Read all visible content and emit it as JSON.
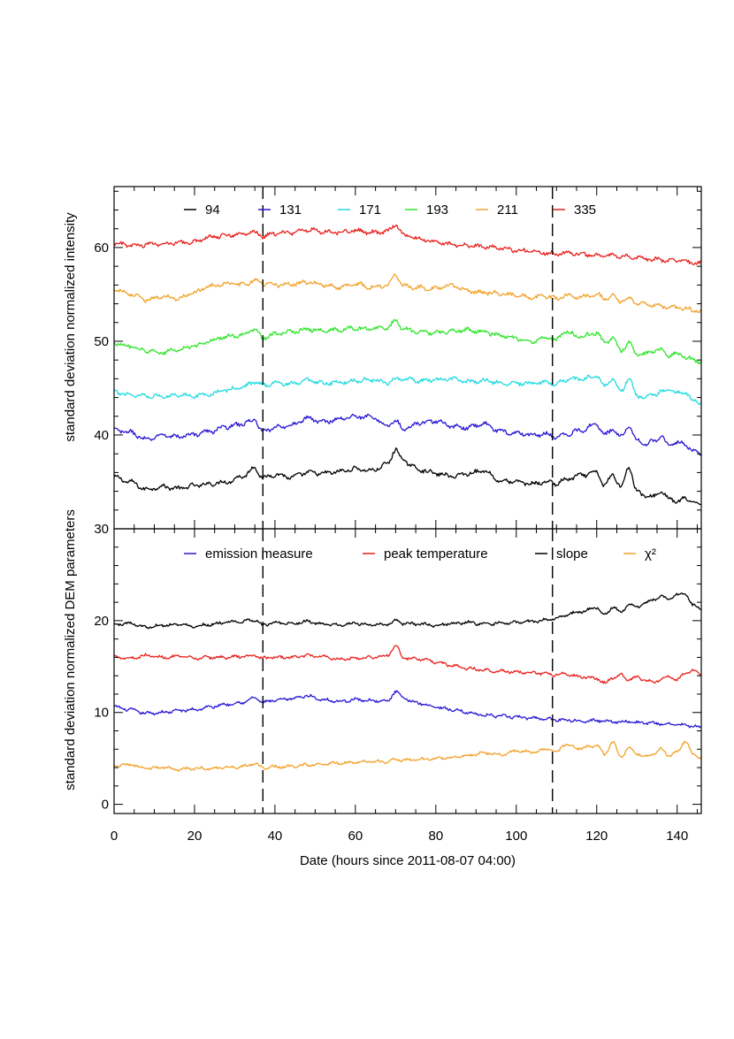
{
  "chart_data": [
    {
      "type": "line",
      "panel": "top",
      "ylabel": "standard deviation normalized intensity",
      "xlim": [
        0,
        146
      ],
      "ylim": [
        30,
        66.5
      ],
      "y_ticks": [
        40,
        50,
        60
      ],
      "vlines": [
        37,
        109
      ],
      "legend_position": "top",
      "series": [
        {
          "name": "94",
          "color": "#000000",
          "base": 35,
          "x": [
            0,
            4,
            8,
            12,
            16,
            20,
            24,
            28,
            32,
            35,
            37,
            40,
            44,
            48,
            52,
            56,
            60,
            64,
            68,
            70,
            72,
            76,
            80,
            84,
            88,
            92,
            96,
            100,
            104,
            108,
            110,
            112,
            116,
            120,
            122,
            124,
            126,
            128,
            130,
            132,
            134,
            136,
            138,
            140,
            142,
            144,
            146
          ],
          "values": [
            35.5,
            35.0,
            34.2,
            34.5,
            34.3,
            34.6,
            34.8,
            35.0,
            35.6,
            36.5,
            35.4,
            35.8,
            35.5,
            36.0,
            35.9,
            36.1,
            36.4,
            36.2,
            36.9,
            38.5,
            37.2,
            36.3,
            35.9,
            35.6,
            35.9,
            36.2,
            35.1,
            35.0,
            34.8,
            35.0,
            34.8,
            35.2,
            35.7,
            36.0,
            34.6,
            35.8,
            34.5,
            36.6,
            34.0,
            33.5,
            33.4,
            34.0,
            33.2,
            32.9,
            33.2,
            32.8,
            32.6
          ]
        },
        {
          "name": "131",
          "color": "#2a17d4",
          "base": 40,
          "x": [
            0,
            4,
            8,
            12,
            16,
            20,
            24,
            28,
            32,
            35,
            37,
            40,
            44,
            48,
            52,
            56,
            60,
            64,
            68,
            70,
            72,
            76,
            80,
            84,
            88,
            92,
            96,
            100,
            104,
            108,
            110,
            112,
            116,
            120,
            122,
            124,
            126,
            128,
            130,
            132,
            134,
            136,
            138,
            140,
            142,
            144,
            146
          ],
          "values": [
            40.5,
            40.3,
            39.5,
            40.0,
            39.8,
            40.1,
            40.4,
            40.9,
            41.2,
            41.6,
            40.3,
            40.8,
            41.0,
            41.8,
            41.4,
            41.7,
            42.0,
            41.9,
            41.0,
            41.5,
            40.6,
            41.3,
            41.5,
            40.9,
            40.8,
            41.2,
            40.4,
            40.2,
            40.0,
            40.1,
            39.8,
            40.0,
            40.5,
            41.2,
            40.0,
            40.6,
            39.8,
            41.0,
            39.5,
            39.0,
            39.3,
            39.8,
            38.9,
            39.2,
            39.0,
            38.3,
            38.0
          ]
        },
        {
          "name": "171",
          "color": "#22dbe0",
          "base": 45,
          "x": [
            0,
            4,
            8,
            12,
            16,
            20,
            24,
            28,
            32,
            35,
            37,
            40,
            44,
            48,
            52,
            56,
            60,
            64,
            68,
            70,
            72,
            76,
            80,
            84,
            88,
            92,
            96,
            100,
            104,
            108,
            110,
            112,
            116,
            120,
            122,
            124,
            126,
            128,
            130,
            132,
            134,
            136,
            138,
            140,
            142,
            144,
            146
          ],
          "values": [
            44.6,
            44.3,
            44.2,
            44.1,
            44.3,
            44.2,
            44.4,
            44.8,
            45.1,
            45.7,
            45.3,
            45.6,
            45.4,
            45.8,
            45.5,
            45.6,
            45.8,
            45.9,
            45.6,
            46.0,
            45.9,
            45.8,
            45.9,
            46.0,
            45.7,
            45.8,
            45.6,
            45.5,
            45.5,
            45.6,
            45.4,
            45.9,
            46.0,
            46.3,
            45.2,
            46.0,
            44.6,
            46.1,
            44.2,
            44.0,
            44.3,
            44.6,
            44.8,
            44.5,
            44.6,
            43.6,
            43.5
          ]
        },
        {
          "name": "193",
          "color": "#2ee62a",
          "base": 50,
          "x": [
            0,
            4,
            8,
            12,
            16,
            20,
            24,
            28,
            32,
            35,
            37,
            40,
            44,
            48,
            52,
            56,
            60,
            64,
            68,
            70,
            72,
            76,
            80,
            84,
            88,
            92,
            96,
            100,
            104,
            108,
            110,
            112,
            116,
            120,
            122,
            124,
            126,
            128,
            130,
            132,
            134,
            136,
            138,
            140,
            142,
            144,
            146
          ],
          "values": [
            49.8,
            49.4,
            49.0,
            48.8,
            49.1,
            49.5,
            50.1,
            50.5,
            50.7,
            51.3,
            50.3,
            50.8,
            51.0,
            51.3,
            51.1,
            51.2,
            51.4,
            51.3,
            51.4,
            52.2,
            51.3,
            51.0,
            50.9,
            51.1,
            51.2,
            51.0,
            50.6,
            50.3,
            50.0,
            50.4,
            50.1,
            51.0,
            50.5,
            50.9,
            49.8,
            50.3,
            49.0,
            49.8,
            48.7,
            48.6,
            48.9,
            49.1,
            48.5,
            48.7,
            48.3,
            48.0,
            47.8
          ]
        },
        {
          "name": "211",
          "color": "#f2a22a",
          "base": 55,
          "x": [
            0,
            4,
            8,
            12,
            16,
            20,
            24,
            28,
            32,
            35,
            37,
            40,
            44,
            48,
            52,
            56,
            60,
            64,
            68,
            70,
            72,
            76,
            80,
            84,
            88,
            92,
            96,
            100,
            104,
            108,
            110,
            112,
            116,
            120,
            122,
            124,
            126,
            128,
            130,
            132,
            134,
            136,
            138,
            140,
            142,
            144,
            146
          ],
          "values": [
            55.6,
            55.0,
            54.4,
            54.8,
            54.6,
            55.2,
            55.9,
            56.2,
            56.0,
            56.5,
            56.2,
            56.0,
            56.1,
            56.3,
            56.0,
            55.8,
            56.1,
            55.8,
            55.9,
            57.1,
            55.9,
            55.7,
            55.6,
            56.0,
            55.4,
            55.2,
            55.1,
            54.9,
            54.7,
            54.8,
            54.5,
            54.9,
            54.7,
            55.0,
            54.6,
            54.8,
            54.3,
            54.5,
            54.1,
            53.9,
            53.8,
            53.7,
            53.6,
            53.6,
            53.5,
            53.3,
            53.2
          ]
        },
        {
          "name": "335",
          "color": "#e8201c",
          "base": 60,
          "x": [
            0,
            4,
            8,
            12,
            16,
            20,
            24,
            28,
            32,
            35,
            37,
            40,
            44,
            48,
            52,
            56,
            60,
            64,
            68,
            70,
            72,
            76,
            80,
            84,
            88,
            92,
            96,
            100,
            104,
            108,
            110,
            112,
            116,
            120,
            122,
            124,
            126,
            128,
            130,
            132,
            134,
            136,
            138,
            140,
            142,
            144,
            146
          ],
          "values": [
            60.5,
            60.2,
            60.3,
            60.4,
            60.5,
            60.6,
            61.1,
            61.3,
            61.5,
            61.6,
            61.2,
            61.5,
            61.6,
            61.9,
            61.7,
            61.6,
            61.8,
            61.6,
            61.7,
            62.5,
            61.3,
            60.9,
            60.6,
            60.3,
            60.2,
            60.1,
            59.9,
            59.7,
            59.6,
            59.4,
            59.3,
            59.4,
            59.3,
            59.2,
            59.1,
            59.1,
            59.0,
            59.0,
            58.9,
            58.8,
            58.7,
            58.7,
            58.6,
            58.6,
            58.5,
            58.4,
            58.3
          ]
        }
      ]
    },
    {
      "type": "line",
      "panel": "bottom",
      "ylabel": "standard deviation normalized DEM parameters",
      "xlabel": "Date (hours since 2011-08-07 04:00)",
      "xlim": [
        0,
        146
      ],
      "ylim": [
        -1,
        30
      ],
      "x_ticks": [
        0,
        20,
        40,
        60,
        80,
        100,
        120,
        140
      ],
      "y_ticks": [
        0,
        10,
        20,
        30
      ],
      "vlines": [
        37,
        109
      ],
      "legend_position": "top",
      "series": [
        {
          "name": "emission measure",
          "color": "#2a17d4",
          "base": 10,
          "x": [
            0,
            4,
            8,
            12,
            16,
            20,
            24,
            28,
            32,
            35,
            37,
            40,
            44,
            48,
            52,
            56,
            60,
            64,
            68,
            70,
            72,
            76,
            80,
            84,
            88,
            92,
            96,
            100,
            104,
            108,
            110,
            112,
            116,
            120,
            122,
            124,
            126,
            128,
            130,
            132,
            134,
            136,
            138,
            140,
            142,
            144,
            146
          ],
          "values": [
            10.6,
            10.3,
            9.9,
            10.0,
            10.2,
            10.3,
            10.6,
            10.9,
            11.1,
            11.6,
            11.1,
            11.3,
            11.5,
            11.8,
            11.4,
            11.2,
            11.4,
            11.3,
            11.2,
            12.3,
            11.5,
            11.0,
            10.6,
            10.3,
            10.0,
            9.7,
            9.6,
            9.5,
            9.4,
            9.3,
            9.2,
            9.2,
            9.1,
            9.1,
            9.1,
            9.0,
            9.0,
            9.0,
            8.9,
            8.9,
            8.8,
            8.8,
            8.7,
            8.7,
            8.6,
            8.5,
            8.3
          ]
        },
        {
          "name": "peak temperature",
          "color": "#e8201c",
          "base": 15,
          "x": [
            0,
            4,
            8,
            12,
            16,
            20,
            24,
            28,
            32,
            35,
            37,
            40,
            44,
            48,
            52,
            56,
            60,
            64,
            68,
            70,
            72,
            76,
            80,
            84,
            88,
            92,
            96,
            100,
            104,
            108,
            110,
            112,
            116,
            120,
            122,
            124,
            126,
            128,
            130,
            132,
            134,
            136,
            138,
            140,
            142,
            144,
            146
          ],
          "values": [
            16.1,
            15.9,
            16.2,
            16.0,
            16.1,
            15.9,
            16.0,
            16.0,
            16.1,
            16.2,
            15.9,
            16.0,
            16.0,
            16.2,
            16.1,
            15.8,
            15.9,
            16.0,
            16.2,
            17.3,
            15.9,
            15.8,
            15.5,
            15.1,
            14.8,
            14.6,
            14.5,
            14.4,
            14.3,
            14.2,
            14.1,
            14.2,
            13.9,
            13.7,
            13.2,
            13.8,
            14.1,
            13.6,
            13.8,
            13.5,
            13.3,
            13.6,
            13.9,
            13.5,
            14.3,
            14.6,
            14.2
          ]
        },
        {
          "name": "slope",
          "color": "#000000",
          "base": 20,
          "x": [
            0,
            4,
            8,
            12,
            16,
            20,
            24,
            28,
            32,
            35,
            37,
            40,
            44,
            48,
            52,
            56,
            60,
            64,
            68,
            70,
            72,
            76,
            80,
            84,
            88,
            92,
            96,
            100,
            104,
            108,
            110,
            112,
            116,
            120,
            122,
            124,
            126,
            128,
            130,
            132,
            134,
            136,
            138,
            140,
            142,
            144,
            146
          ],
          "values": [
            19.6,
            19.7,
            19.3,
            19.5,
            19.6,
            19.4,
            19.6,
            19.8,
            19.9,
            20.1,
            19.5,
            19.8,
            19.7,
            19.9,
            19.6,
            19.5,
            19.7,
            19.5,
            19.6,
            20.0,
            19.7,
            19.6,
            19.5,
            19.7,
            19.8,
            19.6,
            19.7,
            19.8,
            19.9,
            20.1,
            20.2,
            20.6,
            21.0,
            21.4,
            20.6,
            21.5,
            20.9,
            21.8,
            21.5,
            21.9,
            22.3,
            22.6,
            22.4,
            22.8,
            23.0,
            21.6,
            21.4
          ]
        },
        {
          "name": "χ²",
          "color": "#f2a22a",
          "base": 5,
          "x": [
            0,
            4,
            8,
            12,
            16,
            20,
            24,
            28,
            32,
            35,
            37,
            40,
            44,
            48,
            52,
            56,
            60,
            64,
            68,
            70,
            72,
            76,
            80,
            84,
            88,
            92,
            96,
            100,
            104,
            108,
            110,
            112,
            116,
            120,
            122,
            124,
            126,
            128,
            130,
            132,
            134,
            136,
            138,
            140,
            142,
            144,
            146
          ],
          "values": [
            4.2,
            4.3,
            3.9,
            4.0,
            3.8,
            3.9,
            3.9,
            4.0,
            4.1,
            4.4,
            4.0,
            4.1,
            4.1,
            4.3,
            4.4,
            4.5,
            4.6,
            4.7,
            4.6,
            4.9,
            4.8,
            4.9,
            5.0,
            5.1,
            5.3,
            5.6,
            5.4,
            5.8,
            5.7,
            6.0,
            5.6,
            6.5,
            6.1,
            6.4,
            5.4,
            6.8,
            5.1,
            6.2,
            5.5,
            5.2,
            5.5,
            6.0,
            5.3,
            5.7,
            6.9,
            5.4,
            5.1
          ]
        }
      ]
    }
  ]
}
